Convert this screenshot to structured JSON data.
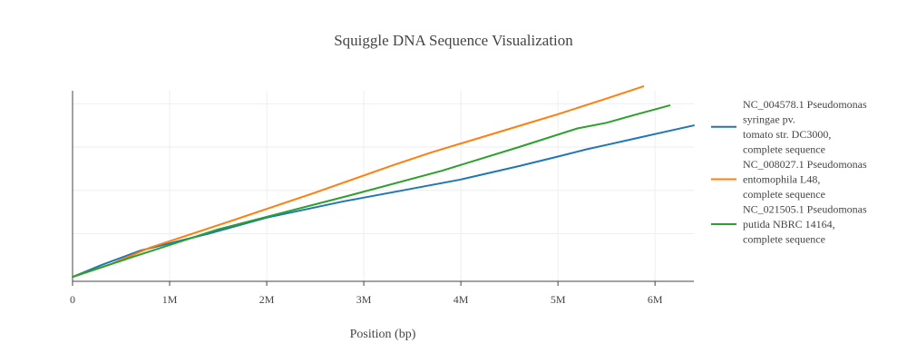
{
  "chart_data": {
    "type": "line",
    "title": "Squiggle DNA Sequence Visualization",
    "xlabel": "Position (bp)",
    "ylabel": "",
    "xlim": [
      0,
      6400000
    ],
    "ylim": [
      -100000,
      4300000
    ],
    "x_ticks": [
      {
        "value": 0,
        "label": "0"
      },
      {
        "value": 1000000,
        "label": "1M"
      },
      {
        "value": 2000000,
        "label": "2M"
      },
      {
        "value": 3000000,
        "label": "3M"
      },
      {
        "value": 4000000,
        "label": "4M"
      },
      {
        "value": 5000000,
        "label": "5M"
      },
      {
        "value": 6000000,
        "label": "6M"
      }
    ],
    "y_grid": [
      0,
      1000000,
      2000000,
      3000000,
      4000000
    ],
    "grid": true,
    "legend_position": "right",
    "series": [
      {
        "name": "NC_004578.1 Pseudomonas syringae pv. tomato str. DC3000, complete sequence",
        "legend_lines": [
          "NC_004578.1 Pseudomonas",
          "syringae pv.",
          "tomato str. DC3000,",
          "complete sequence"
        ],
        "color": "#1f77b4",
        "x": [
          0,
          300000,
          700000,
          1400000,
          2000000,
          2800000,
          3400000,
          4000000,
          4600000,
          5000000,
          5300000,
          5500000,
          5800000,
          6100000,
          6400000
        ],
        "y": [
          0,
          280000,
          610000,
          1000000,
          1370000,
          1750000,
          2000000,
          2250000,
          2560000,
          2780000,
          2950000,
          3050000,
          3200000,
          3350000,
          3500000
        ]
      },
      {
        "name": "NC_008027.1 Pseudomonas entomophila L48, complete sequence",
        "legend_lines": [
          "NC_008027.1 Pseudomonas",
          "entomophila L48,",
          "complete sequence"
        ],
        "color": "#ff7f0e",
        "x": [
          0,
          400000,
          800000,
          1600000,
          2500000,
          3300000,
          3700000,
          4500000,
          5000000,
          5500000,
          5880000
        ],
        "y": [
          0,
          300000,
          680000,
          1270000,
          1950000,
          2580000,
          2880000,
          3420000,
          3760000,
          4120000,
          4400000
        ]
      },
      {
        "name": "NC_021505.1 Pseudomonas putida NBRC 14164, complete sequence",
        "legend_lines": [
          "NC_021505.1 Pseudomonas",
          "putida NBRC 14164,",
          "complete sequence"
        ],
        "color": "#2ca02c",
        "x": [
          0,
          600000,
          1500000,
          2800000,
          3800000,
          4600000,
          5200000,
          5500000,
          5800000,
          6150000
        ],
        "y": [
          0,
          450000,
          1100000,
          1850000,
          2450000,
          3000000,
          3430000,
          3560000,
          3750000,
          3960000
        ]
      }
    ]
  }
}
